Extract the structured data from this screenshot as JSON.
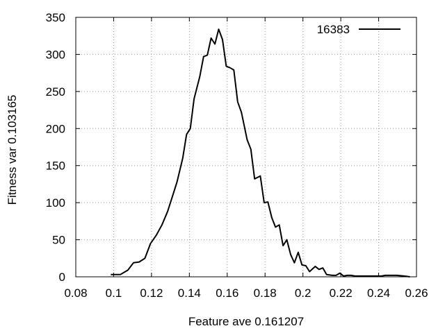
{
  "chart_data": {
    "type": "line",
    "title": "",
    "xlabel": "Feature ave 0.161207",
    "ylabel": "Fitness var 0.103165",
    "xlim": [
      0.08,
      0.26
    ],
    "ylim": [
      0,
      350
    ],
    "x_ticks": [
      0.08,
      0.1,
      0.12,
      0.14,
      0.16,
      0.18,
      0.2,
      0.22,
      0.24,
      0.26
    ],
    "x_tick_labels": [
      "0.08",
      "0.1",
      "0.12",
      "0.14",
      "0.16",
      "0.18",
      "0.2",
      "0.22",
      "0.24",
      "0.26"
    ],
    "y_ticks": [
      0,
      50,
      100,
      150,
      200,
      250,
      300,
      350
    ],
    "y_tick_labels": [
      "0",
      "50",
      "100",
      "150",
      "200",
      "250",
      "300",
      "350"
    ],
    "grid": true,
    "legend_position": "top-right",
    "series": [
      {
        "name": "16383",
        "color": "#000000",
        "x": [
          0.0985,
          0.1005,
          0.1035,
          0.1075,
          0.1105,
          0.1135,
          0.1165,
          0.1195,
          0.1225,
          0.1255,
          0.1285,
          0.1315,
          0.1335,
          0.1365,
          0.1385,
          0.1405,
          0.1425,
          0.1455,
          0.1475,
          0.1495,
          0.1515,
          0.1535,
          0.1555,
          0.1575,
          0.1595,
          0.1615,
          0.1635,
          0.1655,
          0.1675,
          0.1705,
          0.1725,
          0.1745,
          0.1775,
          0.1795,
          0.1815,
          0.1835,
          0.1855,
          0.1875,
          0.1895,
          0.1915,
          0.1935,
          0.1955,
          0.1975,
          0.1995,
          0.2015,
          0.2035,
          0.2065,
          0.2085,
          0.2105,
          0.2125,
          0.2155,
          0.2175,
          0.2195,
          0.2215,
          0.2235,
          0.2255,
          0.2275,
          0.2295,
          0.2315,
          0.2335,
          0.2355,
          0.2375,
          0.2395,
          0.2415,
          0.2435,
          0.2465,
          0.2495,
          0.2535,
          0.2565
        ],
        "y": [
          3,
          3,
          3,
          9,
          19,
          20,
          25,
          45,
          56,
          70,
          88,
          112,
          128,
          160,
          192,
          200,
          240,
          270,
          297,
          299,
          322,
          314,
          334,
          320,
          284,
          282,
          279,
          236,
          222,
          185,
          172,
          132,
          136,
          100,
          101,
          80,
          67,
          70,
          42,
          50,
          30,
          19,
          33,
          16,
          15,
          7,
          14,
          10,
          12,
          3,
          2,
          2,
          5,
          1,
          2,
          2,
          1,
          1,
          1,
          1,
          1,
          1,
          1,
          1,
          2,
          2,
          2,
          1,
          0
        ]
      }
    ]
  }
}
